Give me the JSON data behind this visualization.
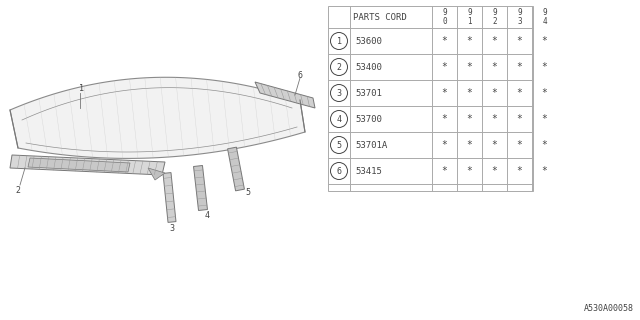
{
  "bg_color": "#ffffff",
  "parts_cord_header": "PARTS CORD",
  "year_cols": [
    "9\n0",
    "9\n1",
    "9\n2",
    "9\n3",
    "9\n4"
  ],
  "rows": [
    {
      "num": "1",
      "code": "53600"
    },
    {
      "num": "2",
      "code": "53400"
    },
    {
      "num": "3",
      "code": "53701"
    },
    {
      "num": "4",
      "code": "53700"
    },
    {
      "num": "5",
      "code": "53701A"
    },
    {
      "num": "6",
      "code": "53415"
    }
  ],
  "footer_code": "A530A00058",
  "tc": "#444444",
  "lc": "#aaaaaa",
  "diagram_color": "#777777",
  "hatch_color": "#888888"
}
